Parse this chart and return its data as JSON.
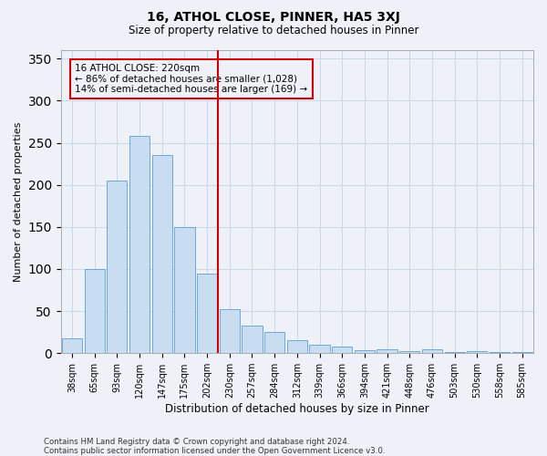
{
  "title1": "16, ATHOL CLOSE, PINNER, HA5 3XJ",
  "title2": "Size of property relative to detached houses in Pinner",
  "xlabel": "Distribution of detached houses by size in Pinner",
  "ylabel": "Number of detached properties",
  "categories": [
    "38sqm",
    "65sqm",
    "93sqm",
    "120sqm",
    "147sqm",
    "175sqm",
    "202sqm",
    "230sqm",
    "257sqm",
    "284sqm",
    "312sqm",
    "339sqm",
    "366sqm",
    "394sqm",
    "421sqm",
    "448sqm",
    "476sqm",
    "503sqm",
    "530sqm",
    "558sqm",
    "585sqm"
  ],
  "values": [
    18,
    100,
    205,
    258,
    235,
    150,
    95,
    52,
    33,
    25,
    15,
    10,
    8,
    4,
    5,
    2,
    5,
    1,
    2,
    1,
    1
  ],
  "bar_color": "#c9ddf0",
  "bar_edge_color": "#5a9fd4",
  "grid_color": "#d0d8e8",
  "bg_color": "#eef2f8",
  "vline_color": "#cc0000",
  "annotation_title": "16 ATHOL CLOSE: 220sqm",
  "annotation_line1": "← 86% of detached houses are smaller (1,028)",
  "annotation_line2": "14% of semi-detached houses are larger (169) →",
  "annotation_box_color": "#cc0000",
  "ylim": [
    0,
    360
  ],
  "yticks": [
    0,
    50,
    100,
    150,
    200,
    250,
    300,
    350
  ],
  "footer1": "Contains HM Land Registry data © Crown copyright and database right 2024.",
  "footer2": "Contains public sector information licensed under the Open Government Licence v3.0."
}
